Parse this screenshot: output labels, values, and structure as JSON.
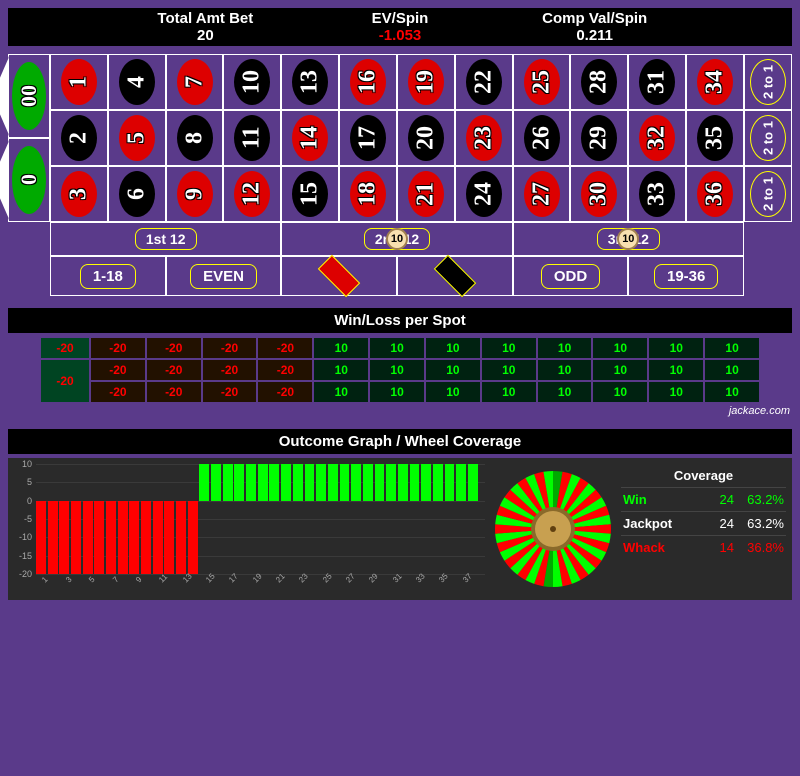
{
  "stats": {
    "total_bet": {
      "label": "Total Amt Bet",
      "value": "20",
      "color": "#fff"
    },
    "ev": {
      "label": "EV/Spin",
      "value": "-1.053",
      "color": "#f00"
    },
    "comp": {
      "label": "Comp Val/Spin",
      "value": "0.211",
      "color": "#fff"
    }
  },
  "board": {
    "zero": "0",
    "double_zero": "00",
    "red": [
      1,
      3,
      5,
      7,
      9,
      12,
      14,
      16,
      18,
      19,
      21,
      23,
      25,
      27,
      30,
      32,
      34,
      36
    ],
    "two_to_one": "2 to 1",
    "dozens": [
      "1st 12",
      "2nd 12",
      "3rd 12"
    ],
    "outside": [
      "1-18",
      "EVEN",
      "RED",
      "BLACK",
      "ODD",
      "19-36"
    ],
    "bets": [
      {
        "target": "2nd 12",
        "amount": "10"
      },
      {
        "target": "3rd 12",
        "amount": "10"
      }
    ]
  },
  "colors": {
    "red": "#d00",
    "black": "#000",
    "green": "#0a0",
    "bg": "#5a3a8a",
    "yellow": "#ff0"
  },
  "winloss": {
    "title": "Win/Loss per Spot",
    "zero": "-20",
    "double_zero": "-20",
    "rows": [
      [
        "-20",
        "-20",
        "-20",
        "-20",
        "10",
        "10",
        "10",
        "10",
        "10",
        "10",
        "10",
        "10"
      ],
      [
        "-20",
        "-20",
        "-20",
        "-20",
        "10",
        "10",
        "10",
        "10",
        "10",
        "10",
        "10",
        "10"
      ],
      [
        "-20",
        "-20",
        "-20",
        "-20",
        "10",
        "10",
        "10",
        "10",
        "10",
        "10",
        "10",
        "10"
      ]
    ]
  },
  "watermark": "jackace.com",
  "outcome": {
    "title": "Outcome Graph / Wheel Coverage",
    "y_ticks": [
      10,
      5,
      0,
      -5,
      -10,
      -15,
      -20
    ],
    "bars": [
      {
        "x": 1,
        "y": -20,
        "color": "#f00"
      },
      {
        "x": 2,
        "y": -20,
        "color": "#f00"
      },
      {
        "x": 3,
        "y": -20,
        "color": "#f00"
      },
      {
        "x": 4,
        "y": -20,
        "color": "#f00"
      },
      {
        "x": 5,
        "y": -20,
        "color": "#f00"
      },
      {
        "x": 6,
        "y": -20,
        "color": "#f00"
      },
      {
        "x": 7,
        "y": -20,
        "color": "#f00"
      },
      {
        "x": 8,
        "y": -20,
        "color": "#f00"
      },
      {
        "x": 9,
        "y": -20,
        "color": "#f00"
      },
      {
        "x": 10,
        "y": -20,
        "color": "#f00"
      },
      {
        "x": 11,
        "y": -20,
        "color": "#f00"
      },
      {
        "x": 12,
        "y": -20,
        "color": "#f00"
      },
      {
        "x": 13,
        "y": -20,
        "color": "#f00"
      },
      {
        "x": 14,
        "y": -20,
        "color": "#f00"
      },
      {
        "x": 15,
        "y": 10,
        "color": "#0f0"
      },
      {
        "x": 16,
        "y": 10,
        "color": "#0f0"
      },
      {
        "x": 17,
        "y": 10,
        "color": "#0f0"
      },
      {
        "x": 18,
        "y": 10,
        "color": "#0f0"
      },
      {
        "x": 19,
        "y": 10,
        "color": "#0f0"
      },
      {
        "x": 20,
        "y": 10,
        "color": "#0f0"
      },
      {
        "x": 21,
        "y": 10,
        "color": "#0f0"
      },
      {
        "x": 22,
        "y": 10,
        "color": "#0f0"
      },
      {
        "x": 23,
        "y": 10,
        "color": "#0f0"
      },
      {
        "x": 24,
        "y": 10,
        "color": "#0f0"
      },
      {
        "x": 25,
        "y": 10,
        "color": "#0f0"
      },
      {
        "x": 26,
        "y": 10,
        "color": "#0f0"
      },
      {
        "x": 27,
        "y": 10,
        "color": "#0f0"
      },
      {
        "x": 28,
        "y": 10,
        "color": "#0f0"
      },
      {
        "x": 29,
        "y": 10,
        "color": "#0f0"
      },
      {
        "x": 30,
        "y": 10,
        "color": "#0f0"
      },
      {
        "x": 31,
        "y": 10,
        "color": "#0f0"
      },
      {
        "x": 32,
        "y": 10,
        "color": "#0f0"
      },
      {
        "x": 33,
        "y": 10,
        "color": "#0f0"
      },
      {
        "x": 34,
        "y": 10,
        "color": "#0f0"
      },
      {
        "x": 35,
        "y": 10,
        "color": "#0f0"
      },
      {
        "x": 36,
        "y": 10,
        "color": "#0f0"
      },
      {
        "x": 37,
        "y": 10,
        "color": "#0f0"
      },
      {
        "x": 38,
        "y": 10,
        "color": "#0f0"
      }
    ],
    "x_ticks": [
      1,
      3,
      5,
      7,
      9,
      11,
      13,
      15,
      17,
      19,
      21,
      23,
      25,
      27,
      29,
      31,
      33,
      35,
      37
    ],
    "y_min": -20,
    "y_max": 10
  },
  "wheel_sectors": [
    "#0a0",
    "#f00",
    "#0f0",
    "#f00",
    "#0f0",
    "#f00",
    "#0f0",
    "#f00",
    "#0f0",
    "#f00",
    "#0f0",
    "#f00",
    "#0f0",
    "#f00",
    "#0f0",
    "#f00",
    "#0f0",
    "#f00",
    "#0f0",
    "#0a0",
    "#f00",
    "#0f0",
    "#f00",
    "#0f0",
    "#f00",
    "#0f0",
    "#f00",
    "#0f0",
    "#f00",
    "#0f0",
    "#f00",
    "#0f0",
    "#f00",
    "#0f0",
    "#f00",
    "#0f0",
    "#f00",
    "#0f0"
  ],
  "coverage": {
    "title": "Coverage",
    "rows": [
      {
        "label": "Win",
        "count": "24",
        "pct": "63.2%",
        "color": "#0f0"
      },
      {
        "label": "Jackpot",
        "count": "24",
        "pct": "63.2%",
        "color": "#fff"
      },
      {
        "label": "Whack",
        "count": "14",
        "pct": "36.8%",
        "color": "#f00"
      }
    ]
  }
}
